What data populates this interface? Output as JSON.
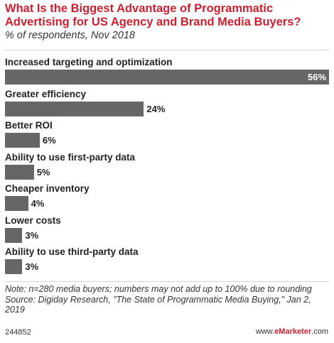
{
  "header": {
    "title": "What Is the Biggest Advantage of Programmatic Advertising for US Agency and Brand Media Buyers?",
    "subtitle": "% of respondents, Nov 2018"
  },
  "chart_data": {
    "type": "bar",
    "orientation": "horizontal",
    "categories": [
      "Increased targeting and optimization",
      "Greater efficiency",
      "Better ROI",
      "Ability to use first-party data",
      "Cheaper inventory",
      "Lower costs",
      "Ability to use third-party data"
    ],
    "values": [
      56,
      24,
      6,
      5,
      4,
      3,
      3
    ],
    "value_labels": [
      "56%",
      "24%",
      "6%",
      "5%",
      "4%",
      "3%",
      "3%"
    ],
    "xlim": [
      0,
      56
    ],
    "grid": false,
    "legend": "none",
    "bar_color": "#666666"
  },
  "footer": {
    "note": "Note: n=280 media buyers; numbers may not add up to 100% due to rounding",
    "source": "Source: Digiday Research, \"The State of Programmatic Media Buying,\" Jan 2, 2019",
    "chart_id": "244852",
    "brand_prefix": "www.",
    "brand_name": "eMarketer",
    "brand_suffix": ".com"
  },
  "colors": {
    "title": "#cc1f2f",
    "bar": "#666666"
  }
}
